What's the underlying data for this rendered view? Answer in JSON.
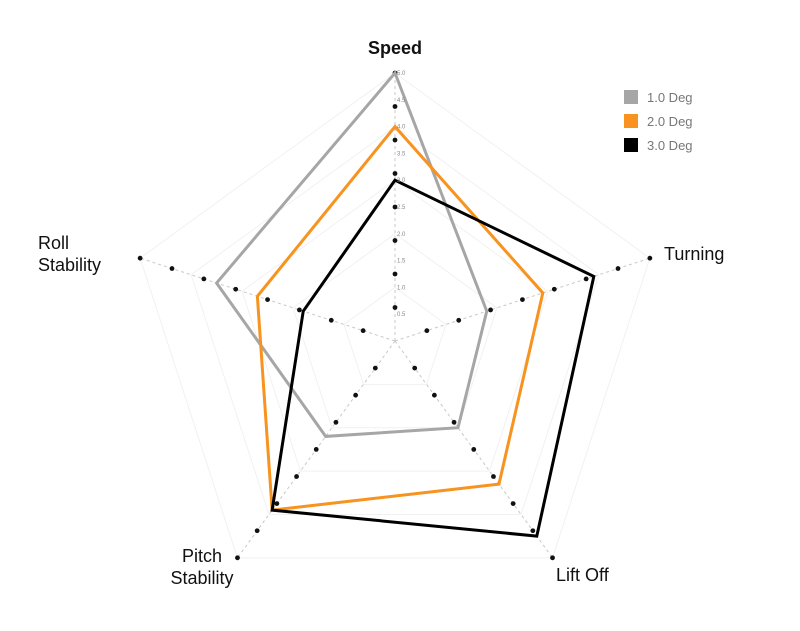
{
  "chart_data": {
    "type": "radar",
    "axes": [
      "Speed",
      "Turning",
      "Lift Off",
      "Pitch Stability",
      "Roll Stability"
    ],
    "axis_labels": [
      [
        "Speed"
      ],
      [
        "Turning"
      ],
      [
        "Lift Off"
      ],
      [
        "Pitch",
        "Stability"
      ],
      [
        "Roll",
        "Stability"
      ]
    ],
    "ticks": [
      "0.5",
      "1.0",
      "1.5",
      "2.0",
      "2.5",
      "3.0",
      "3.5",
      "4.0",
      "4.5",
      "5.0"
    ],
    "rmax": 5.0,
    "series": [
      {
        "name": "1.0 Deg",
        "color": "#a6a6a6",
        "values": [
          5.0,
          1.8,
          2.0,
          2.2,
          3.5
        ]
      },
      {
        "name": "2.0 Deg",
        "color": "#f7931e",
        "values": [
          4.0,
          2.9,
          3.3,
          3.9,
          2.7
        ]
      },
      {
        "name": "3.0 Deg",
        "color": "#000000",
        "values": [
          3.0,
          3.9,
          4.5,
          3.9,
          1.8
        ]
      }
    ],
    "legend_position": "top-right",
    "grid": true
  }
}
